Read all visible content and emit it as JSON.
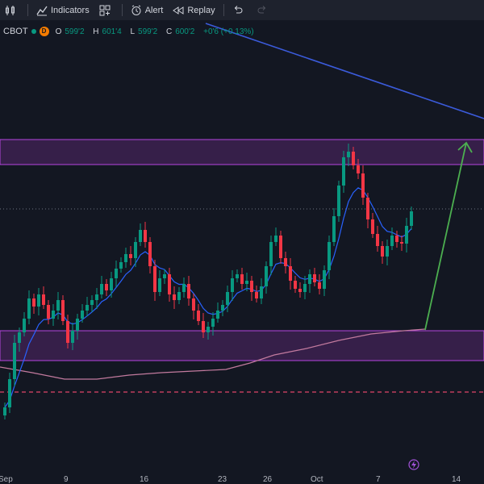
{
  "toolbar": {
    "indicators_label": "Indicators",
    "alert_label": "Alert",
    "replay_label": "Replay"
  },
  "legend": {
    "symbol": "CBOT",
    "interval_badge": "D",
    "open_key": "O",
    "open": "599'2",
    "high_key": "H",
    "high": "601'4",
    "low_key": "L",
    "low": "599'2",
    "close_key": "C",
    "close": "600'2",
    "change": "+0'6 (+0.13%)"
  },
  "colors": {
    "background": "#131722",
    "up": "#089981",
    "down": "#f23645",
    "zone_fill": "#4a2a66",
    "zone_border": "#b646e0",
    "ema": "#2962ff",
    "sma": "#c27a9e",
    "trendline": "#3b5bdb",
    "arrow": "#4caf50"
  },
  "xaxis": {
    "labels": [
      "Sep",
      "9",
      "16",
      "23",
      "26",
      "Oct",
      "7",
      "14"
    ]
  },
  "icons": [
    "candles-icon",
    "indicators-icon",
    "templates-icon",
    "alert-icon",
    "replay-icon",
    "undo-icon",
    "redo-icon",
    "lightning-icon"
  ]
}
